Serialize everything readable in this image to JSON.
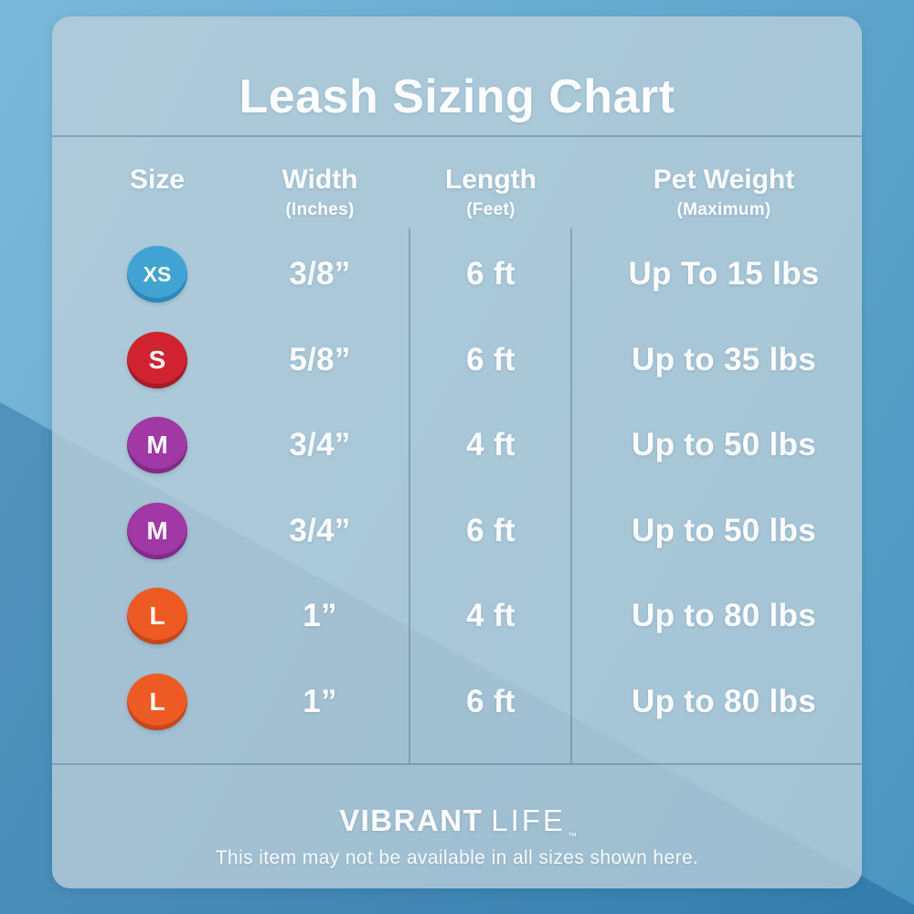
{
  "title": "Leash Sizing Chart",
  "columns": [
    {
      "label": "Size",
      "sub": ""
    },
    {
      "label": "Width",
      "sub": "(Inches)"
    },
    {
      "label": "Length",
      "sub": "(Feet)"
    },
    {
      "label": "Pet Weight",
      "sub": "(Maximum)"
    }
  ],
  "rows": [
    {
      "size": "XS",
      "badge_color": "#41a3d3",
      "badge_rim": "#2d88ba",
      "width": "3/8”",
      "length": "6 ft",
      "weight": "Up To 15 lbs"
    },
    {
      "size": "S",
      "badge_color": "#d12230",
      "badge_rim": "#a71a27",
      "width": "5/8”",
      "length": "6 ft",
      "weight": "Up to 35 lbs"
    },
    {
      "size": "M",
      "badge_color": "#a038a6",
      "badge_rim": "#822c88",
      "width": "3/4”",
      "length": "4 ft",
      "weight": "Up to 50 lbs"
    },
    {
      "size": "M",
      "badge_color": "#a038a6",
      "badge_rim": "#822c88",
      "width": "3/4”",
      "length": "6 ft",
      "weight": "Up to 50 lbs"
    },
    {
      "size": "L",
      "badge_color": "#ee5a24",
      "badge_rim": "#c6481c",
      "width": "1”",
      "length": "4 ft",
      "weight": "Up to 80 lbs"
    },
    {
      "size": "L",
      "badge_color": "#ee5a24",
      "badge_rim": "#c6481c",
      "width": "1”",
      "length": "6 ft",
      "weight": "Up to 80 lbs"
    }
  ],
  "footer": {
    "brand_bold": "VIBRANT",
    "brand_light": "LIFE",
    "trademark": "™",
    "disclaimer": "This item may not be available in all sizes shown here."
  },
  "colors": {
    "background_light": "#6fb0d4",
    "background_dark": "#3e90ba",
    "panel": "#a9c6d6",
    "text": "#fdfeff"
  },
  "chart_data": {
    "type": "table",
    "title": "Leash Sizing Chart",
    "columns": [
      "Size",
      "Width (Inches)",
      "Length (Feet)",
      "Pet Weight (Maximum)"
    ],
    "rows": [
      [
        "XS",
        "3/8\"",
        "6 ft",
        "Up To 15 lbs"
      ],
      [
        "S",
        "5/8\"",
        "6 ft",
        "Up to 35 lbs"
      ],
      [
        "M",
        "3/4\"",
        "4 ft",
        "Up to 50 lbs"
      ],
      [
        "M",
        "3/4\"",
        "6 ft",
        "Up to 50 lbs"
      ],
      [
        "L",
        "1\"",
        "4 ft",
        "Up to 80 lbs"
      ],
      [
        "L",
        "1\"",
        "6 ft",
        "Up to 80 lbs"
      ]
    ]
  }
}
